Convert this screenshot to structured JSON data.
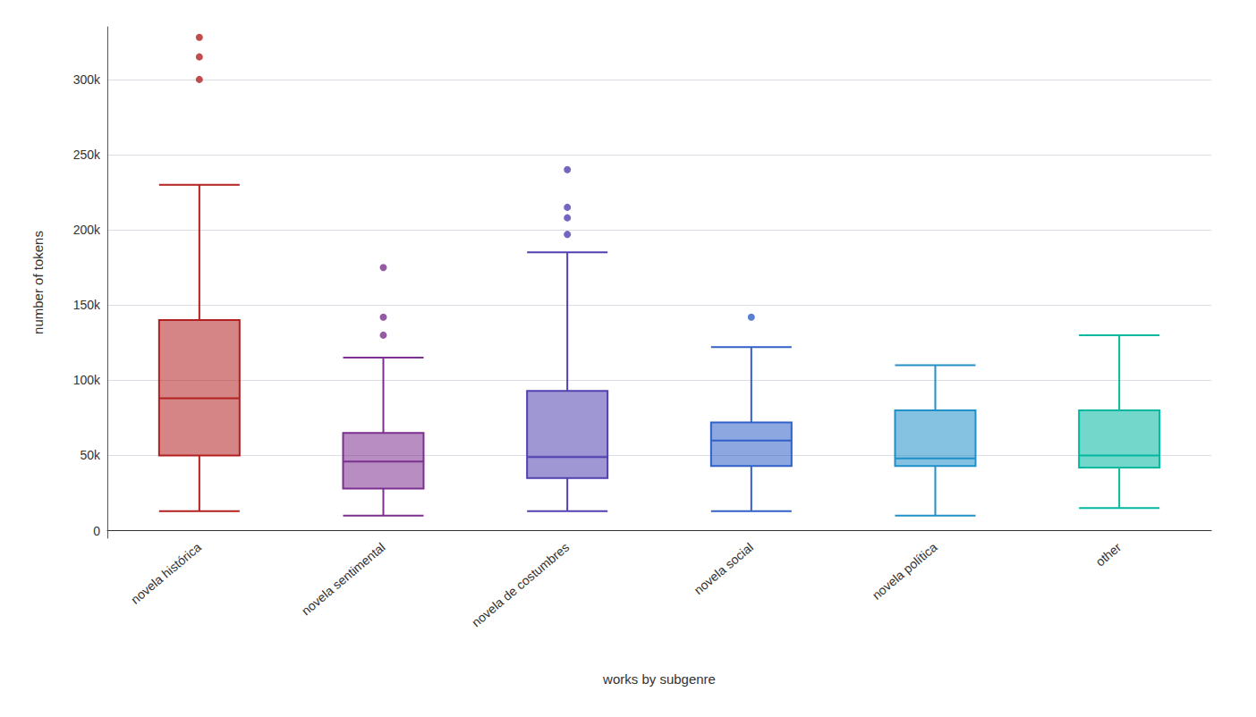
{
  "chart_data": {
    "type": "boxplot",
    "xlabel": "works by subgenre",
    "ylabel": "number of tokens",
    "categories": [
      "novela histórica",
      "novela sentimental",
      "novela de costumbres",
      "novela social",
      "novela política",
      "other"
    ],
    "colors": [
      "#b22020",
      "#7b3090",
      "#5040b0",
      "#3060c8",
      "#2090c8",
      "#00b8a0"
    ],
    "values": [
      {
        "low": 13000,
        "q1": 50000,
        "median": 88000,
        "q3": 140000,
        "high": 230000,
        "fliers": [
          300000,
          315000,
          328000
        ]
      },
      {
        "low": 10000,
        "q1": 28000,
        "median": 46000,
        "q3": 65000,
        "high": 115000,
        "fliers": [
          130000,
          142000,
          175000
        ]
      },
      {
        "low": 13000,
        "q1": 35000,
        "median": 49000,
        "q3": 93000,
        "high": 185000,
        "fliers": [
          197000,
          208000,
          215000,
          240000
        ]
      },
      {
        "low": 13000,
        "q1": 43000,
        "median": 60000,
        "q3": 72000,
        "high": 122000,
        "fliers": [
          142000
        ]
      },
      {
        "low": 10000,
        "q1": 43000,
        "median": 48000,
        "q3": 80000,
        "high": 110000,
        "fliers": []
      },
      {
        "low": 15000,
        "q1": 42000,
        "median": 50000,
        "q3": 80000,
        "high": 130000,
        "fliers": []
      }
    ],
    "ylim": [
      -5000,
      335000
    ],
    "yticks": [
      0,
      {
        "value": 50000,
        "label": "50k"
      },
      {
        "value": 100000,
        "label": "100k"
      },
      {
        "value": 150000,
        "label": "150k"
      },
      {
        "value": 200000,
        "label": "200k"
      },
      {
        "value": 250000,
        "label": "250k"
      },
      {
        "value": 300000,
        "label": "300k"
      }
    ],
    "grid": true
  }
}
